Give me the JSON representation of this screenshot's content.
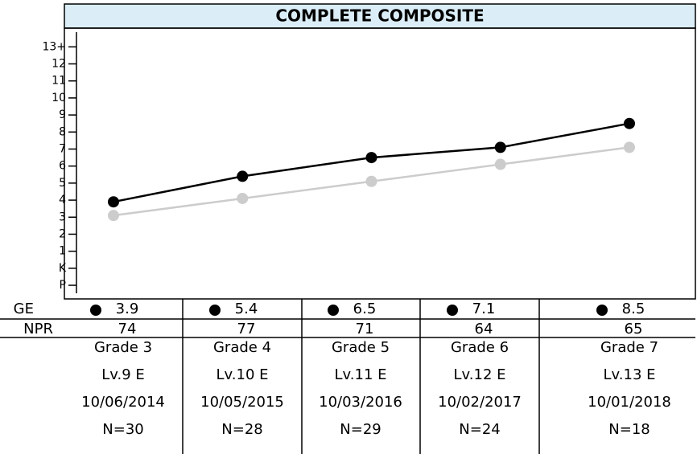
{
  "chart_data": {
    "type": "line",
    "title": "COMPLETE COMPOSITE",
    "ylim": [
      -1.8,
      14.1
    ],
    "yticks": [
      {
        "value": -1,
        "label": "P"
      },
      {
        "value": 0,
        "label": "K"
      },
      1,
      2,
      3,
      4,
      5,
      6,
      7,
      8,
      9,
      10,
      11,
      12,
      {
        "value": 13,
        "label": "13+"
      }
    ],
    "series": [
      {
        "name": "GE",
        "color": "#000000",
        "values": [
          3.9,
          5.4,
          6.5,
          7.1,
          8.5
        ]
      },
      {
        "color": "#cccccc",
        "values": [
          3.1,
          4.1,
          5.1,
          6.1,
          7.1
        ]
      }
    ],
    "npr": {
      "label": "NPR",
      "values": [
        74,
        77,
        71,
        64,
        65
      ]
    },
    "columns": [
      {
        "grade": "Grade 3",
        "level": "Lv.9 E",
        "date": "10/06/2014",
        "n": "N=30"
      },
      {
        "grade": "Grade 4",
        "level": "Lv.10 E",
        "date": "10/05/2015",
        "n": "N=28"
      },
      {
        "grade": "Grade 5",
        "level": "Lv.11 E",
        "date": "10/03/2016",
        "n": "N=29"
      },
      {
        "grade": "Grade 6",
        "level": "Lv.12 E",
        "date": "10/02/2017",
        "n": "N=24"
      },
      {
        "grade": "Grade 7",
        "level": "Lv.13 E",
        "date": "10/01/2018",
        "n": "N=18"
      }
    ]
  }
}
